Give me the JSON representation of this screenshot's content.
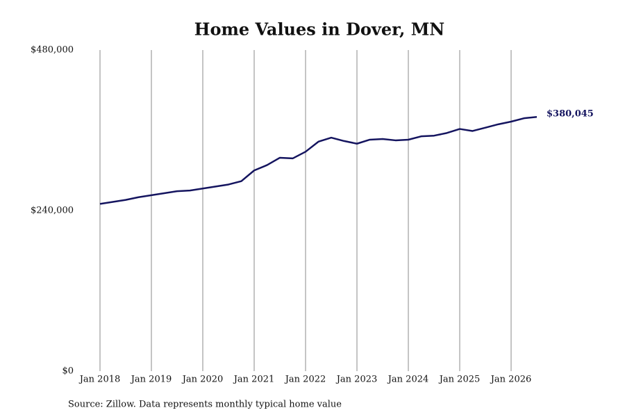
{
  "chart_data": {
    "type": "line",
    "title": "Home Values in Dover, MN",
    "source": "Source: Zillow. Data represents monthly typical home value",
    "x": [
      "2018-01",
      "2018-04",
      "2018-07",
      "2018-10",
      "2019-01",
      "2019-04",
      "2019-07",
      "2019-10",
      "2020-01",
      "2020-04",
      "2020-07",
      "2020-10",
      "2021-01",
      "2021-04",
      "2021-07",
      "2021-10",
      "2022-01",
      "2022-04",
      "2022-07",
      "2022-10",
      "2023-01",
      "2023-04",
      "2023-07",
      "2023-10",
      "2024-01",
      "2024-04",
      "2024-07",
      "2024-10",
      "2025-01",
      "2025-04",
      "2025-07",
      "2025-10",
      "2026-01",
      "2026-04",
      "2026-07"
    ],
    "series": [
      {
        "name": "Dover, MN",
        "color": "#14145f",
        "values": [
          250000,
          253000,
          256000,
          260000,
          263000,
          266000,
          269000,
          270000,
          273000,
          276000,
          279000,
          284000,
          300000,
          308000,
          319000,
          318000,
          328000,
          343000,
          349000,
          344000,
          340000,
          346000,
          347000,
          345000,
          346000,
          351000,
          352000,
          356000,
          362000,
          359000,
          364000,
          369000,
          373000,
          378000,
          380045
        ],
        "value_labels": [
          null,
          null,
          null,
          null,
          null,
          null,
          null,
          null,
          null,
          null,
          null,
          null,
          null,
          null,
          null,
          null,
          null,
          null,
          null,
          null,
          null,
          null,
          null,
          null,
          null,
          null,
          null,
          null,
          null,
          null,
          null,
          null,
          null,
          null,
          "$380,045"
        ]
      }
    ],
    "ylim": [
      0,
      480000
    ],
    "yticks": [
      {
        "value": 0,
        "label": "$0"
      },
      {
        "value": 240000,
        "label": "$240,000"
      },
      {
        "value": 480000,
        "label": "$480,000"
      }
    ],
    "xticks": [
      {
        "value": "2018-01",
        "label": "Jan 2018"
      },
      {
        "value": "2019-01",
        "label": "Jan 2019"
      },
      {
        "value": "2020-01",
        "label": "Jan 2020"
      },
      {
        "value": "2021-01",
        "label": "Jan 2021"
      },
      {
        "value": "2022-01",
        "label": "Jan 2022"
      },
      {
        "value": "2023-01",
        "label": "Jan 2023"
      },
      {
        "value": "2024-01",
        "label": "Jan 2024"
      },
      {
        "value": "2025-01",
        "label": "Jan 2025"
      },
      {
        "value": "2026-01",
        "label": "Jan 2026"
      }
    ],
    "xgrid": true
  }
}
